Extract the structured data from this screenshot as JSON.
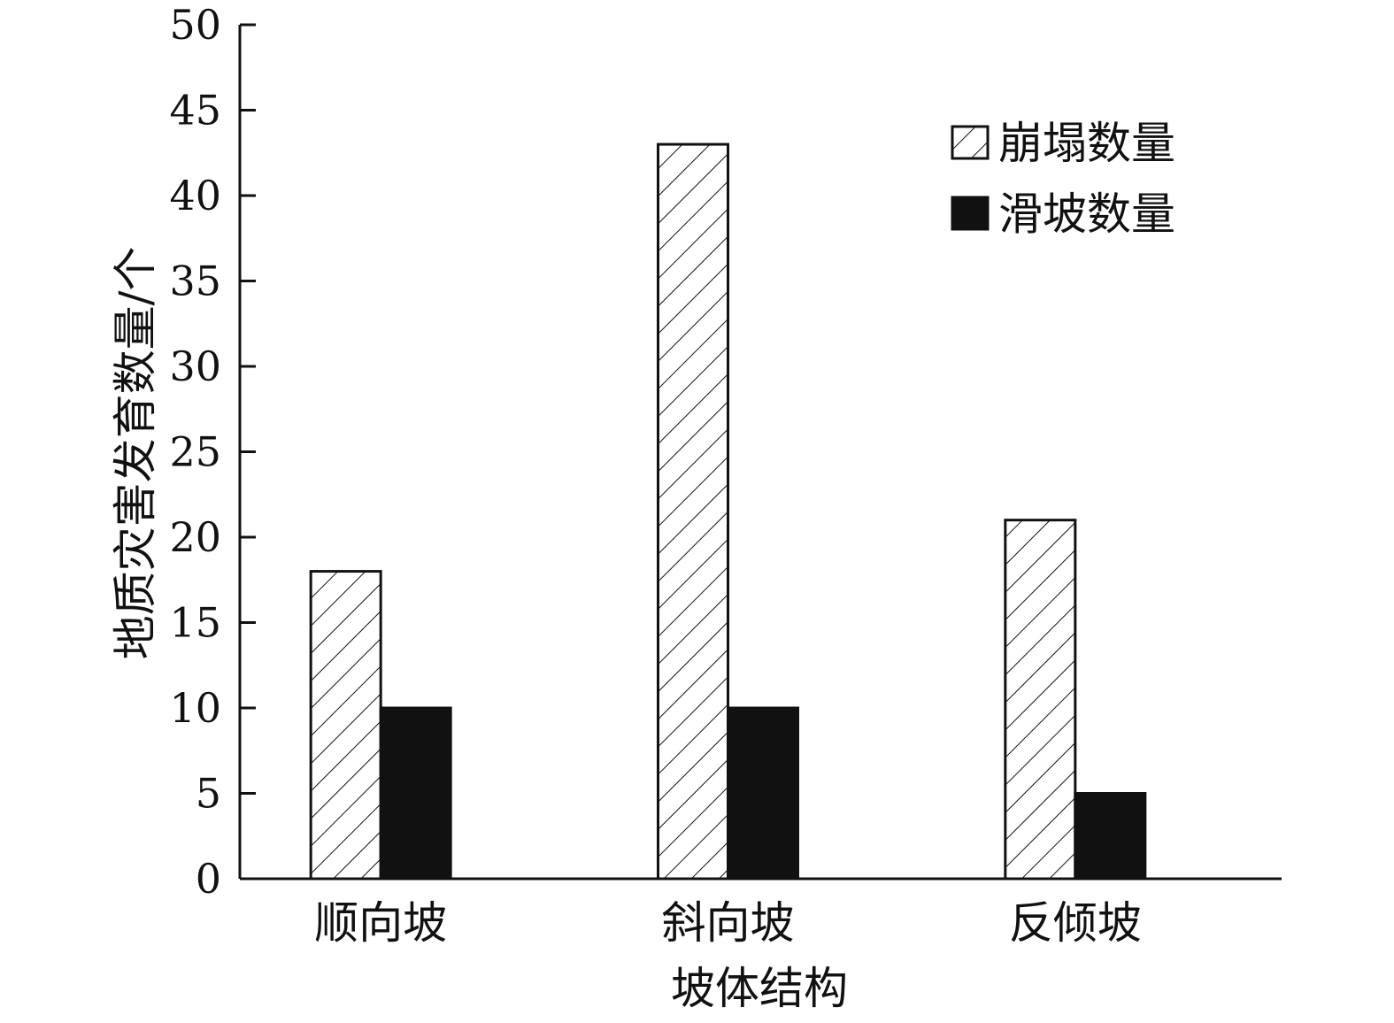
{
  "chart_data": {
    "type": "bar",
    "title": "",
    "xlabel": "坡体结构",
    "ylabel": "地质灾害发育数量/个",
    "categories": [
      "顺向坡",
      "斜向坡",
      "反倾坡"
    ],
    "series": [
      {
        "name": "崩塌数量",
        "values": [
          18,
          43,
          21
        ],
        "fill": "hatched",
        "color": "#111111"
      },
      {
        "name": "滑坡数量",
        "values": [
          10,
          10,
          5
        ],
        "fill": "solid",
        "color": "#111111"
      }
    ],
    "ylim": [
      0,
      50
    ],
    "yticks": [
      0,
      5,
      10,
      15,
      20,
      25,
      30,
      35,
      40,
      45,
      50
    ],
    "grid": false,
    "legend_position": "top-right"
  }
}
